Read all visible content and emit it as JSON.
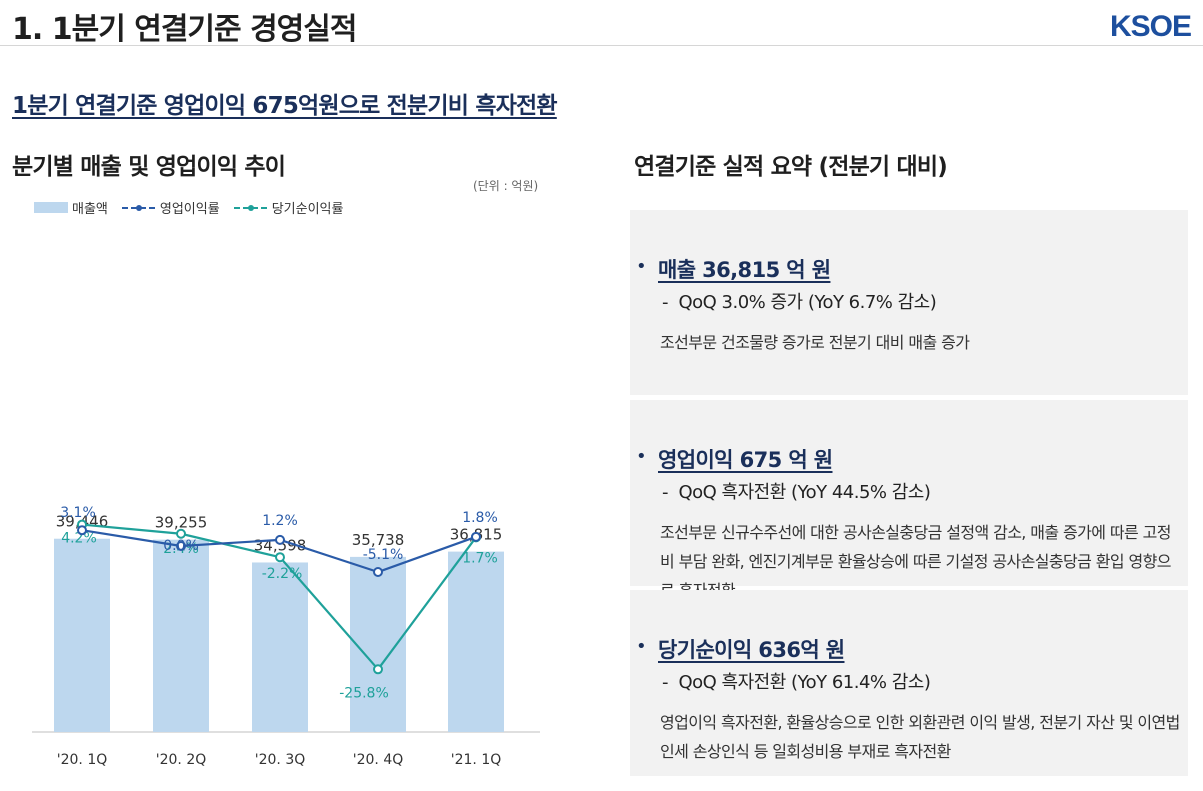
{
  "header": {
    "title": "1. 1분기 연결기준 경영실적",
    "logo": "KSOE"
  },
  "headline": "1분기 연결기준 영업이익 675억원으로 전분기비 흑자전환",
  "left_section": {
    "title": "분기별 매출 및 영업이익 추이",
    "unit": "(단위 : 억원)",
    "legend": [
      {
        "label": "매출액",
        "color": "#bdd7ee"
      },
      {
        "label": "영업이익률",
        "color": "#2a5ba8"
      },
      {
        "label": "당기순이익률",
        "color": "#1fa19a"
      }
    ]
  },
  "chart_data": {
    "type": "bar",
    "categories": [
      "'20. 1Q",
      "'20. 2Q",
      "'20. 3Q",
      "'20. 4Q",
      "'21. 1Q"
    ],
    "series": [
      {
        "name": "매출액",
        "type": "bar",
        "values": [
          39446,
          39255,
          34598,
          35738,
          36815
        ],
        "labels": [
          "39,446",
          "39,255",
          "34,598",
          "35,738",
          "36,815"
        ],
        "color": "#bdd7ee"
      },
      {
        "name": "영업이익률",
        "type": "line",
        "values": [
          3.1,
          0.0,
          1.2,
          -5.1,
          1.8
        ],
        "labels": [
          "3.1%",
          "0.0%",
          "1.2%",
          "-5.1%",
          "1.8%"
        ],
        "color": "#2a5ba8"
      },
      {
        "name": "당기순이익률",
        "type": "line",
        "values": [
          4.2,
          2.4,
          -2.2,
          -25.8,
          1.7
        ],
        "labels": [
          "4.2%",
          "2.4%",
          "-2.2%",
          "-25.8%",
          "1.7%"
        ],
        "color": "#1fa19a"
      }
    ]
  },
  "right_section": {
    "title": "연결기준 실적 요약 (전분기 대비)",
    "cards": [
      {
        "title": "매출 36,815 억 원",
        "sub": "QoQ 3.0% 증가 (YoY 6.7% 감소)",
        "body": "조선부문 건조물량 증가로 전분기 대비 매출 증가"
      },
      {
        "title": "영업이익 675 억 원",
        "sub": "QoQ 흑자전환 (YoY 44.5% 감소)",
        "body": "조선부문 신규수주선에 대한 공사손실충당금 설정액 감소, 매출 증가에 따른 고정비 부담 완화, 엔진기계부문 환율상승에 따른 기설정 공사손실충당금 환입 영향으로 흑자전환"
      },
      {
        "title": "당기순이익 636억 원",
        "sub": "QoQ 흑자전환 (YoY 61.4% 감소)",
        "body": "영업이익 흑자전환, 환율상승으로 인한 외환관련 이익 발생, 전분기 자산 및 이연법인세 손상인식 등 일회성비용 부재로 흑자전환"
      }
    ]
  }
}
